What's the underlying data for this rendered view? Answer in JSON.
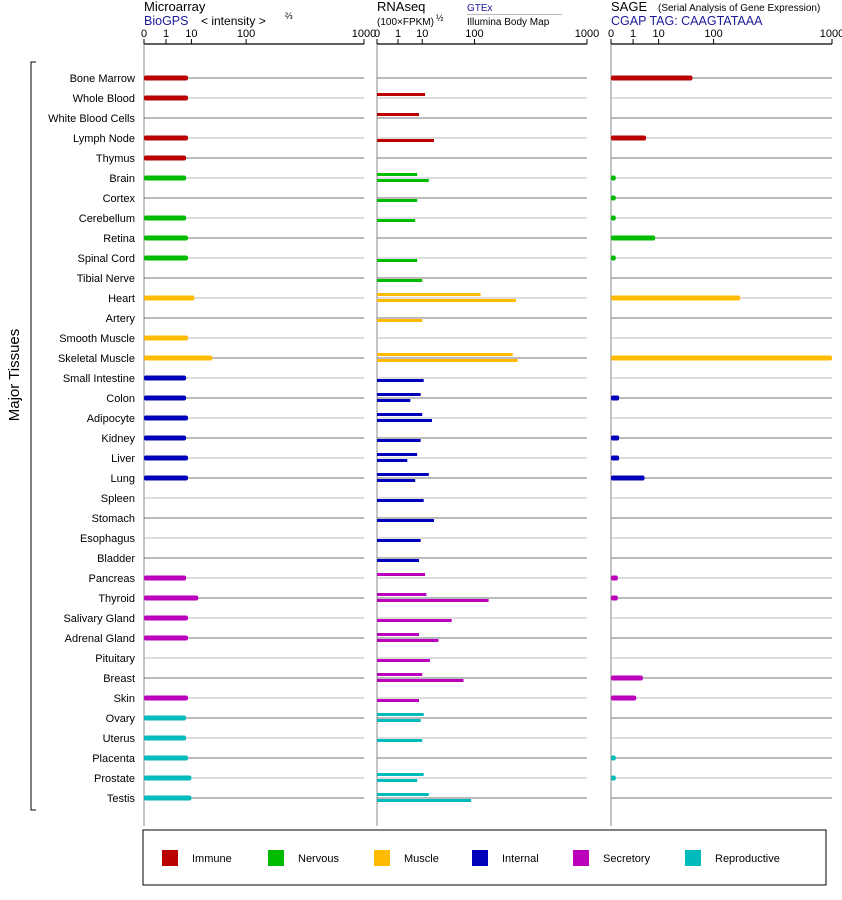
{
  "colors": {
    "Immune": "#bb0000",
    "Nervous": "#00bb00",
    "Muscle": "#ffbb00",
    "Internal": "#0000bb",
    "Secretory": "#bb00bb",
    "Reproductive": "#00bbbb"
  },
  "y_axis_label": "Major Tissues",
  "panels": [
    {
      "id": "microarray",
      "title": "Microarray",
      "subtitle": "BioGPS",
      "subtitle_color": "#1a1a99",
      "unit_text": "< intensity >",
      "unit_exp": "⅔",
      "legend1": "",
      "legend2": ""
    },
    {
      "id": "rnaseq",
      "title": "RNAseq",
      "subtitle": "(100×FPKM)",
      "subtitle_color": "#000000",
      "unit_text": "",
      "unit_exp": "½",
      "legend1": "GTEx",
      "legend2": "Illumina Body Map"
    },
    {
      "id": "sage",
      "title": "SAGE",
      "title_note": "(Serial Analysis of Gene Expression)",
      "subtitle": "CGAP TAG: CAAGTATAAA",
      "subtitle_color": "#1a1a99",
      "unit_text": "",
      "unit_exp": "",
      "legend1": "",
      "legend2": ""
    }
  ],
  "chart_data": {
    "type": "bar",
    "orientation": "horizontal",
    "x_scale": "power",
    "x_ticks": [
      "0",
      "1",
      "10",
      "100",
      "1000"
    ],
    "xlim": [
      0,
      1000
    ],
    "categories": [
      "Bone Marrow",
      "Whole Blood",
      "White Blood Cells",
      "Lymph Node",
      "Thymus",
      "Brain",
      "Cortex",
      "Cerebellum",
      "Retina",
      "Spinal Cord",
      "Tibial Nerve",
      "Heart",
      "Artery",
      "Smooth Muscle",
      "Skeletal Muscle",
      "Small Intestine",
      "Colon",
      "Adipocyte",
      "Kidney",
      "Liver",
      "Lung",
      "Spleen",
      "Stomach",
      "Esophagus",
      "Bladder",
      "Pancreas",
      "Thyroid",
      "Salivary Gland",
      "Adrenal Gland",
      "Pituitary",
      "Breast",
      "Skin",
      "Ovary",
      "Uterus",
      "Placenta",
      "Prostate",
      "Testis"
    ],
    "groups": [
      "Immune",
      "Immune",
      "Immune",
      "Immune",
      "Immune",
      "Nervous",
      "Nervous",
      "Nervous",
      "Nervous",
      "Nervous",
      "Nervous",
      "Muscle",
      "Muscle",
      "Muscle",
      "Muscle",
      "Internal",
      "Internal",
      "Internal",
      "Internal",
      "Internal",
      "Internal",
      "Internal",
      "Internal",
      "Internal",
      "Internal",
      "Secretory",
      "Secretory",
      "Secretory",
      "Secretory",
      "Secretory",
      "Secretory",
      "Secretory",
      "Reproductive",
      "Reproductive",
      "Reproductive",
      "Reproductive",
      "Reproductive"
    ],
    "series": [
      {
        "name": "BioGPS",
        "panel": "microarray",
        "values": [
          8,
          8,
          null,
          8,
          7,
          7,
          null,
          7,
          8,
          8,
          null,
          12,
          null,
          8,
          30,
          7,
          7,
          8,
          7,
          8,
          8,
          null,
          null,
          null,
          null,
          7,
          15,
          8,
          8,
          null,
          null,
          8,
          7,
          7,
          8,
          10,
          10
        ]
      },
      {
        "name": "GTEx",
        "panel": "rnaseq",
        "values": [
          null,
          12,
          8,
          null,
          null,
          7,
          null,
          null,
          null,
          null,
          null,
          120,
          null,
          null,
          270,
          null,
          9,
          10,
          null,
          7,
          15,
          null,
          null,
          null,
          null,
          12,
          13,
          null,
          8,
          null,
          10,
          null,
          11,
          null,
          null,
          11,
          15
        ]
      },
      {
        "name": "Illumina Body Map",
        "panel": "rnaseq",
        "values": [
          null,
          null,
          null,
          20,
          null,
          15,
          7,
          6,
          null,
          7,
          10,
          290,
          10,
          null,
          300,
          11,
          4,
          18,
          9,
          3,
          6,
          11,
          20,
          9,
          8,
          null,
          150,
          45,
          25,
          16,
          70,
          8,
          9,
          10,
          null,
          7,
          90
        ]
      },
      {
        "name": "SAGE",
        "panel": "sage",
        "values": [
          50,
          null,
          null,
          4,
          null,
          0.01,
          0.01,
          0.01,
          8,
          0.01,
          null,
          200,
          null,
          null,
          1000,
          null,
          0.05,
          null,
          0.05,
          0.05,
          3.5,
          null,
          null,
          null,
          null,
          0.03,
          0.03,
          null,
          null,
          null,
          3,
          1.5,
          null,
          null,
          0.01,
          0.01,
          null
        ]
      }
    ],
    "legend": [
      "Immune",
      "Nervous",
      "Muscle",
      "Internal",
      "Secretory",
      "Reproductive"
    ]
  }
}
